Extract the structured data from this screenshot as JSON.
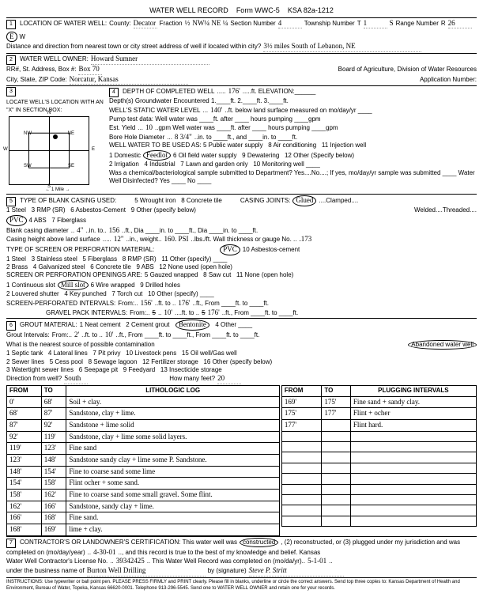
{
  "form": {
    "title": "WATER WELL RECORD",
    "formNo": "Form WWC-5",
    "ksa": "KSA 82a-1212"
  },
  "loc": {
    "county": "Decator",
    "fraction": "½",
    "quarter": "NW¼ NE ¼",
    "section": "4",
    "township": "1",
    "townshipDir": "S",
    "range": "26",
    "rangeDir": "E",
    "distance": "3½ miles South of Lebanon, NE"
  },
  "owner": {
    "name": "Howard Sumner",
    "box": "Box 70",
    "city": "Norcatur, Kansas",
    "board": "Board of Agriculture, Division of Water Resources",
    "appno": "Application Number:"
  },
  "depth": {
    "completed": "176'",
    "static": "140'",
    "yield": "10",
    "bore": "8 3/4\"",
    "useCircled": "Feedlot"
  },
  "casing": {
    "typeCircled": "PVC",
    "diameter": "4\"",
    "to": "156",
    "height": "12\"",
    "weight": "160. PSI",
    "gauge": ".173",
    "jointsCircled": "Glued"
  },
  "screen": {
    "typeCircled": "PVC",
    "openCircled": "Mill slot",
    "from1": "156'",
    "to1": "176'",
    "gFrom": "10'",
    "gTo": "176'"
  },
  "grout": {
    "matCircled": "Bentonite",
    "from": "2'",
    "to": "10'",
    "contamCircled": "Abandoned water well",
    "dir": "South",
    "feet": "20"
  },
  "log": [
    [
      "0'",
      "68'",
      "Soil + clay."
    ],
    [
      "68'",
      "87'",
      "Sandstone, clay + lime."
    ],
    [
      "87'",
      "92'",
      "Sandstone + lime solid"
    ],
    [
      "92'",
      "119'",
      "Sandstone, clay + lime some solid layers."
    ],
    [
      "119'",
      "123'",
      "Fine sand"
    ],
    [
      "123'",
      "148'",
      "Sandstone sandy clay + lime some P. Sandstone."
    ],
    [
      "148'",
      "154'",
      "Fine to coarse sand some lime"
    ],
    [
      "154'",
      "158'",
      "Flint ocher + some sand."
    ],
    [
      "158'",
      "162'",
      "Fine to coarse sand some small gravel. Some flint."
    ],
    [
      "162'",
      "166'",
      "Sandstone, sandy clay + lime."
    ],
    [
      "166'",
      "168'",
      "Fine sand."
    ],
    [
      "168'",
      "169'",
      "lime + clay."
    ]
  ],
  "plug": [
    [
      "169'",
      "175'",
      "Fine sand + sandy clay."
    ],
    [
      "175'",
      "177'",
      "Flint + ocher"
    ],
    [
      "177'",
      "",
      "Flint hard."
    ]
  ],
  "cert": {
    "action": "constructed",
    "date": "4-30-01",
    "license": "39342425",
    "compDate": "5-1-01",
    "business": "Burton Well Drilling",
    "sig": "Steve P. Stritt"
  },
  "instr": "INSTRUCTIONS: Use typewriter or ball point pen. PLEASE PRESS FIRMLY and PRINT clearly. Please fill in blanks, underline or circle the correct answers. Send top three copies to: Kansas Department of Health and Environment, Bureau of Water, Topeka, Kansas 66620-0001. Telephone 913-296-5545. Send one to WATER WELL OWNER and retain one for your records."
}
